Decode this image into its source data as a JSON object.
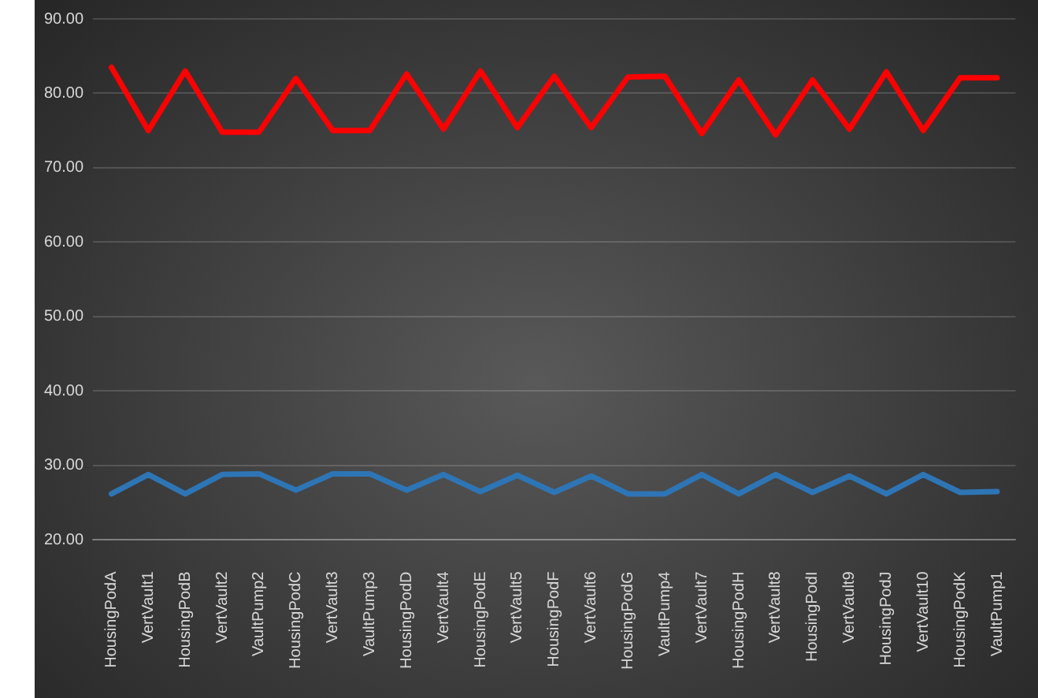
{
  "chart_data": {
    "type": "line",
    "categories": [
      "HousingPodA",
      "VertVault1",
      "HousingPodB",
      "VertVault2",
      "VaultPump2",
      "HousingPodC",
      "VertVault3",
      "VaultPump3",
      "HousingPodD",
      "VertVault4",
      "HousingPodE",
      "VertVault5",
      "HousingPodF",
      "VertVault6",
      "HousingPodG",
      "VaultPump4",
      "VertVault7",
      "HousingPodH",
      "VertVault8",
      "HousingPodI",
      "VertVault9",
      "HousingPodJ",
      "VertVault10",
      "HousingPodK",
      "VaultPump1"
    ],
    "series": [
      {
        "color": "#ff0000",
        "values": [
          83.5,
          75,
          83,
          74.8,
          74.8,
          82,
          75,
          75,
          82.6,
          75.2,
          83,
          75.4,
          82.3,
          75.4,
          82.2,
          82.3,
          74.6,
          81.8,
          74.4,
          81.8,
          75.2,
          82.9,
          75,
          82.1,
          82.1
        ]
      },
      {
        "color": "#2e75b6",
        "values": [
          26.2,
          28.8,
          26.2,
          28.8,
          28.9,
          26.7,
          28.9,
          28.9,
          26.7,
          28.8,
          26.5,
          28.7,
          26.4,
          28.6,
          26.2,
          26.2,
          28.8,
          26.2,
          28.8,
          26.4,
          28.6,
          26.2,
          28.8,
          26.4,
          26.5
        ]
      }
    ],
    "ylim": [
      20,
      90
    ],
    "yticks": [
      {
        "value": 20,
        "label": "20.00"
      },
      {
        "value": 30,
        "label": "30.00"
      },
      {
        "value": 40,
        "label": "40.00"
      },
      {
        "value": 50,
        "label": "50.00"
      },
      {
        "value": 60,
        "label": "60.00"
      },
      {
        "value": 70,
        "label": "70.00"
      },
      {
        "value": 80,
        "label": "80.00"
      },
      {
        "value": 90,
        "label": "90.00"
      }
    ],
    "grid": "y",
    "legend": false,
    "marker": "none",
    "line_style": "solid"
  }
}
